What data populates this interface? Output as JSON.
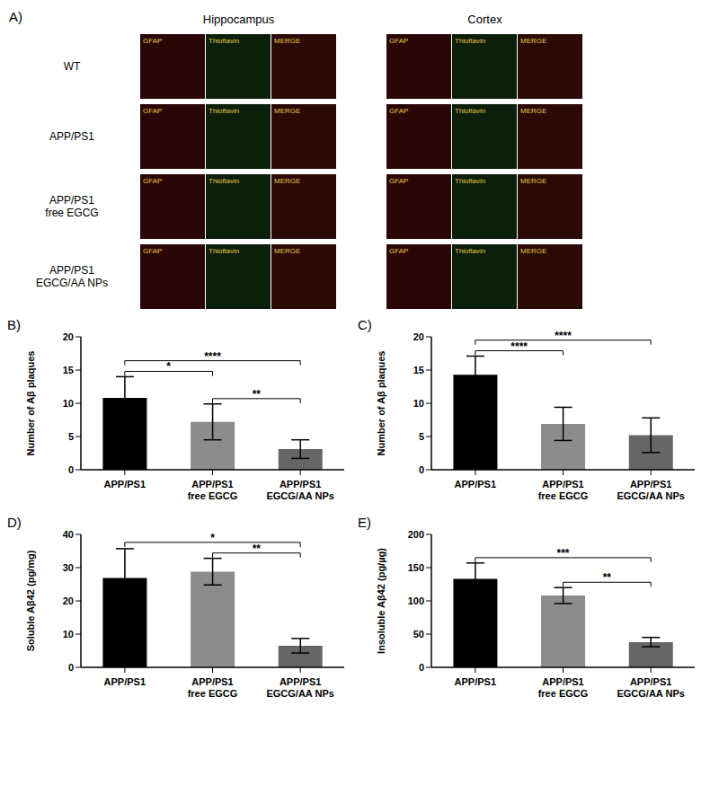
{
  "image_panel": {
    "panel_label": "A)",
    "groups": [
      {
        "title": "Hippocampus",
        "channels": [
          "GFAP",
          "Thioflavin",
          "MERGE"
        ]
      },
      {
        "title": "Cortex",
        "channels": [
          "GFAP",
          "Thioflavin",
          "MERGE"
        ]
      }
    ],
    "rows": [
      "WT",
      "APP/PS1",
      "APP/PS1 free EGCG",
      "APP/PS1 EGCG/AA NPs"
    ]
  },
  "chart_data": [
    {
      "type": "bar",
      "panel_label": "B)",
      "y_label": "Number of Aβ plaques",
      "categories": [
        "APP/PS1",
        "APP/PS1 free EGCG",
        "APP/PS1 EGCG/AA NPs"
      ],
      "values": [
        10.8,
        7.2,
        3.1
      ],
      "errors": [
        3.2,
        2.7,
        1.4
      ],
      "colors": [
        "#000000",
        "#8c8c8c",
        "#666666"
      ],
      "ylim": [
        0,
        20
      ],
      "yticks": [
        0,
        5,
        10,
        15,
        20
      ],
      "grid": false,
      "annotations": [
        {
          "from": "APP/PS1",
          "to": "APP/PS1 free EGCG",
          "label": "*"
        },
        {
          "from": "APP/PS1",
          "to": "APP/PS1 EGCG/AA NPs",
          "label": "****"
        },
        {
          "from": "APP/PS1 free EGCG",
          "to": "APP/PS1 EGCG/AA NPs",
          "label": "**"
        }
      ]
    },
    {
      "type": "bar",
      "panel_label": "C)",
      "y_label": "Number of Aβ plaques",
      "categories": [
        "APP/PS1",
        "APP/PS1 free EGCG",
        "APP/PS1 EGCG/AA NPs"
      ],
      "values": [
        14.3,
        6.9,
        5.2
      ],
      "errors": [
        2.8,
        2.5,
        2.6
      ],
      "colors": [
        "#000000",
        "#8c8c8c",
        "#666666"
      ],
      "ylim": [
        0,
        20
      ],
      "yticks": [
        0,
        5,
        10,
        15,
        20
      ],
      "grid": false,
      "annotations": [
        {
          "from": "APP/PS1",
          "to": "APP/PS1 free EGCG",
          "label": "****"
        },
        {
          "from": "APP/PS1",
          "to": "APP/PS1 EGCG/AA NPs",
          "label": "****"
        }
      ]
    },
    {
      "type": "bar",
      "panel_label": "D)",
      "y_label": "Soluble Aβ42 (pg/mg)",
      "categories": [
        "APP/PS1",
        "APP/PS1 free EGCG",
        "APP/PS1 EGCG/AA NPs"
      ],
      "values": [
        26.9,
        28.8,
        6.5
      ],
      "errors": [
        8.8,
        4.0,
        2.2
      ],
      "colors": [
        "#000000",
        "#8c8c8c",
        "#666666"
      ],
      "ylim": [
        0,
        40
      ],
      "yticks": [
        0,
        10,
        20,
        30,
        40
      ],
      "grid": false,
      "annotations": [
        {
          "from": "APP/PS1",
          "to": "APP/PS1 EGCG/AA NPs",
          "label": "*"
        },
        {
          "from": "APP/PS1 free EGCG",
          "to": "APP/PS1 EGCG/AA NPs",
          "label": "**"
        }
      ]
    },
    {
      "type": "bar",
      "panel_label": "E)",
      "y_label": "Insoluble Aβ42 (pg/µg)",
      "categories": [
        "APP/PS1",
        "APP/PS1 free EGCG",
        "APP/PS1 EGCG/AA NPs"
      ],
      "values": [
        133,
        108,
        38
      ],
      "errors": [
        24,
        12,
        7
      ],
      "colors": [
        "#000000",
        "#8c8c8c",
        "#666666"
      ],
      "ylim": [
        0,
        200
      ],
      "yticks": [
        0,
        50,
        100,
        150,
        200
      ],
      "grid": false,
      "annotations": [
        {
          "from": "APP/PS1",
          "to": "APP/PS1 EGCG/AA NPs",
          "label": "***"
        },
        {
          "from": "APP/PS1 free EGCG",
          "to": "APP/PS1 EGCG/AA NPs",
          "label": "**"
        }
      ]
    }
  ]
}
